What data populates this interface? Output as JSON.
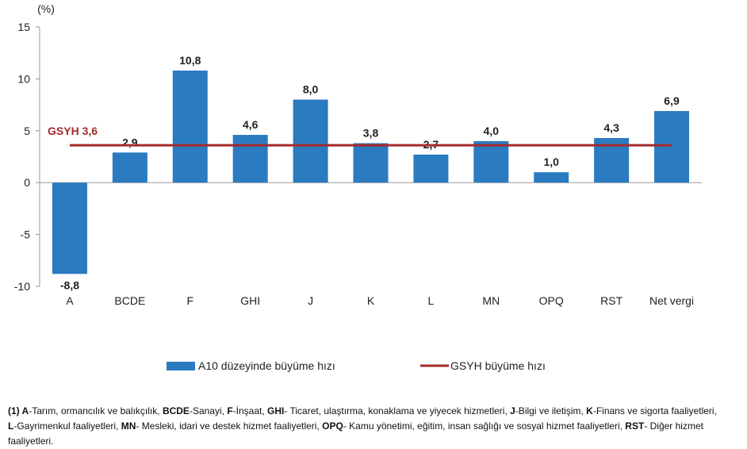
{
  "chart_data": {
    "type": "bar",
    "ylabel": "(%)",
    "ylim": [
      -10,
      15
    ],
    "yticks": [
      "15",
      "10",
      "5",
      "0",
      "-5",
      "-10"
    ],
    "ytick_values": [
      15,
      10,
      5,
      0,
      -5,
      -10
    ],
    "categories": [
      "A",
      "BCDE",
      "F",
      "GHI",
      "J",
      "K",
      "L",
      "MN",
      "OPQ",
      "RST",
      "Net vergi"
    ],
    "series": [
      {
        "name": "A10 düzeyinde büyüme hızı",
        "type": "bar",
        "color": "#2a7bc0",
        "values": [
          -8.8,
          2.9,
          10.8,
          4.6,
          8.0,
          3.8,
          2.7,
          4.0,
          1.0,
          4.3,
          6.9
        ],
        "labels": [
          "-8,8",
          "2,9",
          "10,8",
          "4,6",
          "8,0",
          "3,8",
          "2,7",
          "4,0",
          "1,0",
          "4,3",
          "6,9"
        ]
      },
      {
        "name": "GSYH büyüme hızı",
        "type": "line",
        "color": "#a52a2a",
        "value": 3.6,
        "label": "GSYH 3,6"
      }
    ],
    "legend": "bottom"
  },
  "footnote": [
    {
      "b": "(1) A",
      "t": "-Tarım, ormancılık ve balıkçılık, "
    },
    {
      "b": "BCDE",
      "t": "-Sanayi, "
    },
    {
      "b": "F",
      "t": "-İnşaat, "
    },
    {
      "b": "GHI",
      "t": "- Ticaret, ulaştırma, konaklama ve yiyecek hizmetleri, "
    },
    {
      "b": "J",
      "t": "-Bilgi ve iletişim, "
    },
    {
      "b": "K",
      "t": "-Finans ve sigorta faaliyetleri, "
    },
    {
      "b": "L",
      "t": "-Gayrimenkul faaliyetleri, "
    },
    {
      "b": "MN",
      "t": "- Mesleki, idari ve destek hizmet faaliyetleri, "
    },
    {
      "b": "OPQ",
      "t": "- Kamu yönetimi, eğitim, insan sağlığı ve sosyal hizmet faaliyetleri, "
    },
    {
      "b": "RST",
      "t": "- Diğer hizmet faaliyetleri."
    }
  ]
}
